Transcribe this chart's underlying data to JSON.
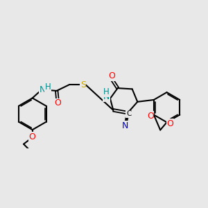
{
  "bg_color": "#e8e8e8",
  "bond_color": "#000000",
  "atom_colors": {
    "O": "#ff0000",
    "N": "#0000cd",
    "S": "#ccaa00",
    "NH": "#008b8b",
    "C": "#000000"
  },
  "font_size": 8.5,
  "fig_size": [
    3.0,
    3.0
  ],
  "dpi": 100
}
